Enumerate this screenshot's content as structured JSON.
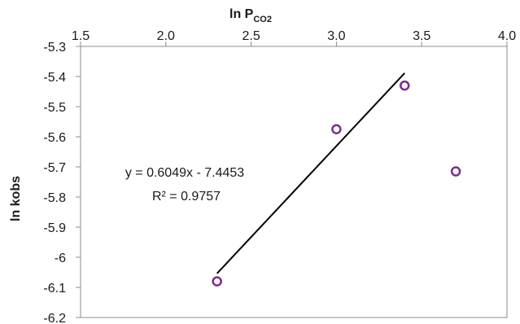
{
  "chart_data": {
    "type": "scatter",
    "x_axis": {
      "label": "ln P",
      "label_subscript": "CO2",
      "position": "top",
      "range": [
        1.5,
        4.0
      ],
      "ticks": [
        "1.5",
        "2.0",
        "2.5",
        "3.0",
        "3.5",
        "4.0"
      ]
    },
    "y_axis": {
      "label": "ln kobs",
      "range": [
        -6.2,
        -5.3
      ],
      "ticks": [
        "-5.3",
        "-5.4",
        "-5.5",
        "-5.6",
        "-5.7",
        "-5.8",
        "-5.9",
        "-6",
        "-6.1",
        "-6.2"
      ]
    },
    "grid": false,
    "legend": "none",
    "series": [
      {
        "points": [
          {
            "x": 2.3,
            "y": -6.08
          },
          {
            "x": 3.0,
            "y": -5.575
          },
          {
            "x": 3.4,
            "y": -5.43
          },
          {
            "x": 3.7,
            "y": -5.715
          }
        ],
        "marker": "open-circle",
        "color": "#7b2d8e"
      }
    ],
    "trendline": {
      "type": "linear",
      "x_range": [
        2.3,
        3.4
      ],
      "slope": 0.6049,
      "intercept": -7.4453,
      "color": "#000000",
      "equation": "y = 0.6049x - 7.4453",
      "r_squared": "R² = 0.9757"
    }
  }
}
